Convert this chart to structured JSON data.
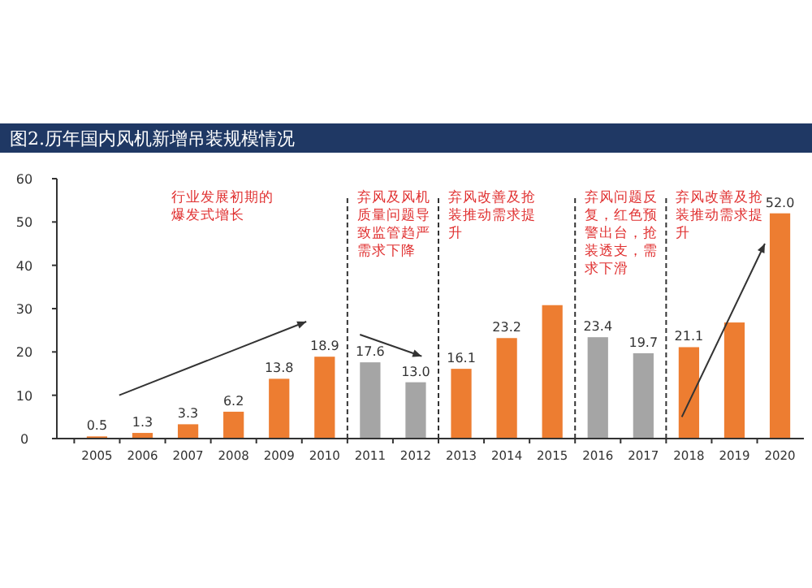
{
  "chart_data": {
    "type": "bar",
    "title": "图2.历年国内风机新增吊装规模情况",
    "categories": [
      "2005",
      "2006",
      "2007",
      "2008",
      "2009",
      "2010",
      "2011",
      "2012",
      "2013",
      "2014",
      "2015",
      "2016",
      "2017",
      "2018",
      "2019",
      "2020"
    ],
    "values": [
      0.5,
      1.3,
      3.3,
      6.2,
      13.8,
      18.9,
      17.6,
      13.0,
      16.1,
      23.2,
      30.8,
      23.4,
      19.7,
      21.1,
      26.8,
      52.0
    ],
    "value_labels": [
      "0.5",
      "1.3",
      "3.3",
      "6.2",
      "13.8",
      "18.9",
      "17.6",
      "13.0",
      "16.1",
      "23.2",
      null,
      "23.4",
      "19.7",
      "21.1",
      null,
      "52.0"
    ],
    "colors": [
      "#ed7d31",
      "#ed7d31",
      "#ed7d31",
      "#ed7d31",
      "#ed7d31",
      "#ed7d31",
      "#a5a5a5",
      "#a5a5a5",
      "#ed7d31",
      "#ed7d31",
      "#ed7d31",
      "#a5a5a5",
      "#a5a5a5",
      "#ed7d31",
      "#ed7d31",
      "#ed7d31"
    ],
    "ylim": [
      0,
      60
    ],
    "yticks": [
      0,
      10,
      20,
      30,
      40,
      50,
      60
    ],
    "grid": false,
    "annotations": [
      "行业发展初期的爆发式增长",
      "弃风及风机质量问题导致监管趋严需求下降",
      "弃风改善及抢装推动需求提升",
      "弃风问题反复，红色预警出台，抢装透支，需求下滑",
      "弃风改善及抢装推动需求提升"
    ]
  }
}
